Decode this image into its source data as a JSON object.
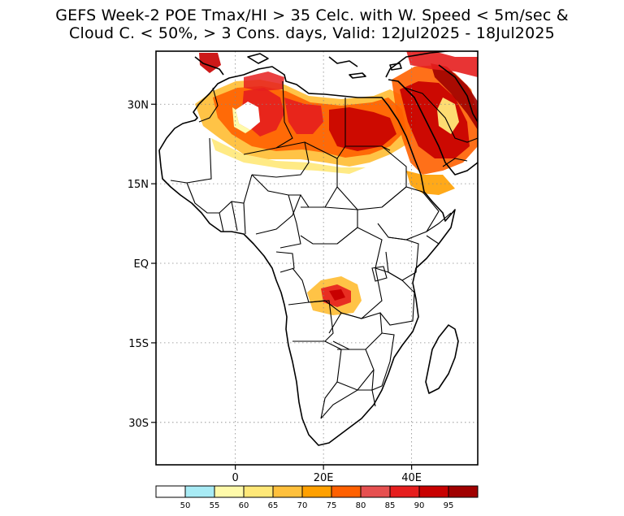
{
  "title": {
    "line1": "GEFS Week-2 POE Tmax/HI > 35 Celc. with W. Speed < 5m/sec &",
    "line2": "Cloud C. < 50%, > 3 Cons. days, Valid: 12Jul2025 - 18Jul2025"
  },
  "map": {
    "lon_range": [
      -18,
      55
    ],
    "lat_range": [
      -38,
      40
    ],
    "lat_ticks": [
      {
        "lat": 30,
        "label": "30N"
      },
      {
        "lat": 15,
        "label": "15N"
      },
      {
        "lat": 0,
        "label": "EQ"
      },
      {
        "lat": -15,
        "label": "15S"
      },
      {
        "lat": -30,
        "label": "30S"
      }
    ],
    "lon_ticks": [
      {
        "lon": 0,
        "label": "0"
      },
      {
        "lon": 20,
        "label": "20E"
      },
      {
        "lon": 40,
        "label": "40E"
      }
    ],
    "land_color": "#ffffff",
    "border_color": "#000000"
  },
  "colorbar": {
    "colors": [
      "#ffffff",
      "#a8ebf5",
      "#fffaaa",
      "#ffe878",
      "#ffc03c",
      "#ffa000",
      "#ff6000",
      "#e65050",
      "#e61e1e",
      "#c80000",
      "#a00000"
    ],
    "labels": [
      "50",
      "55",
      "60",
      "65",
      "70",
      "75",
      "80",
      "85",
      "90",
      "95"
    ]
  }
}
